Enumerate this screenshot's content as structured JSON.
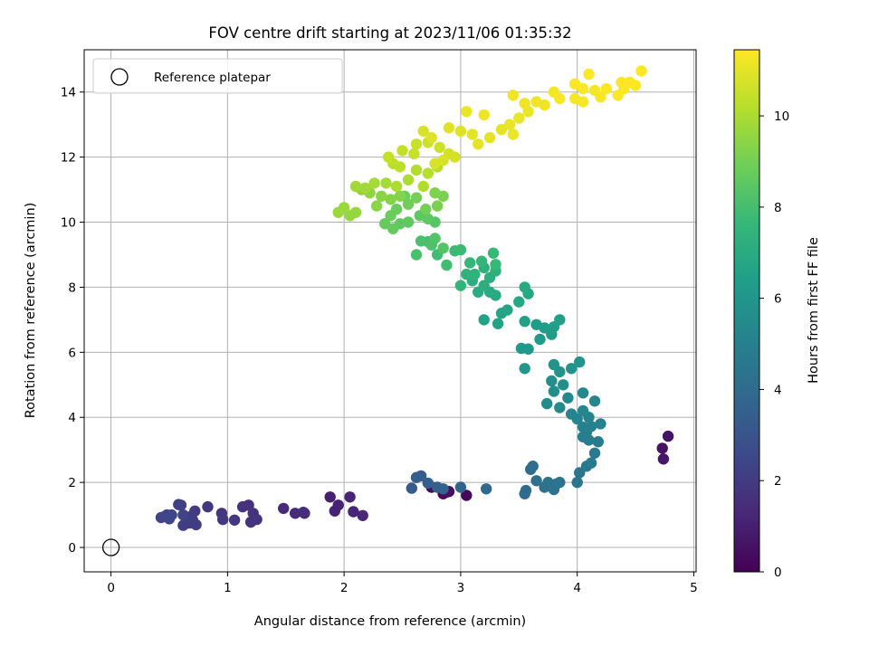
{
  "chart_data": {
    "type": "scatter",
    "title": "FOV centre drift starting at 2023/11/06 01:35:32",
    "xlabel": "Angular distance from reference (arcmin)",
    "ylabel": "Rotation from reference (arcmin)",
    "xlim": [
      -0.23,
      5.02
    ],
    "ylim": [
      -0.75,
      15.3
    ],
    "xticks": [
      0,
      1,
      2,
      3,
      4,
      5
    ],
    "yticks": [
      0,
      2,
      4,
      6,
      8,
      10,
      12,
      14
    ],
    "grid": true,
    "legend": {
      "placement": "upper-left",
      "entries": [
        "Reference platepar"
      ]
    },
    "colorbar": {
      "label": "Hours from first FF file",
      "range": [
        0,
        11.45
      ],
      "ticks": [
        0,
        2,
        4,
        6,
        8,
        10
      ],
      "colormap": "viridis"
    },
    "reference_point": {
      "x": 0,
      "y": 0,
      "label": "Reference platepar"
    },
    "series": [
      {
        "columns": [
          "x",
          "y",
          "hours"
        ],
        "points": [
          [
            2.88,
            1.7,
            0.2
          ],
          [
            3.05,
            1.6,
            0.3
          ],
          [
            2.75,
            1.85,
            0.4
          ],
          [
            2.85,
            1.65,
            0.4
          ],
          [
            2.9,
            1.72,
            0.5
          ],
          [
            4.78,
            3.42,
            0.6
          ],
          [
            4.73,
            3.05,
            0.6
          ],
          [
            4.74,
            2.72,
            0.7
          ],
          [
            1.88,
            1.55,
            1.0
          ],
          [
            1.92,
            1.12,
            1.1
          ],
          [
            1.95,
            1.3,
            1.1
          ],
          [
            2.05,
            1.55,
            1.2
          ],
          [
            2.08,
            1.1,
            1.2
          ],
          [
            2.16,
            0.98,
            1.3
          ],
          [
            1.48,
            1.2,
            1.4
          ],
          [
            1.58,
            1.05,
            1.4
          ],
          [
            1.66,
            1.05,
            1.5
          ],
          [
            1.65,
            1.08,
            1.5
          ],
          [
            1.13,
            1.25,
            1.6
          ],
          [
            1.18,
            1.3,
            1.6
          ],
          [
            1.22,
            1.05,
            1.7
          ],
          [
            1.2,
            0.78,
            1.7
          ],
          [
            1.25,
            0.86,
            1.7
          ],
          [
            1.06,
            0.84,
            1.8
          ],
          [
            0.95,
            1.05,
            1.8
          ],
          [
            0.96,
            0.86,
            1.9
          ],
          [
            0.83,
            1.25,
            1.9
          ],
          [
            0.72,
            1.12,
            2.0
          ],
          [
            0.7,
            0.85,
            2.0
          ],
          [
            0.67,
            0.75,
            2.0
          ],
          [
            0.62,
            0.68,
            2.1
          ],
          [
            0.73,
            0.7,
            2.1
          ],
          [
            0.68,
            0.95,
            2.1
          ],
          [
            0.6,
            1.3,
            2.2
          ],
          [
            0.58,
            1.32,
            2.2
          ],
          [
            0.62,
            1.0,
            2.3
          ],
          [
            0.48,
            1.0,
            2.3
          ],
          [
            0.46,
            0.95,
            2.4
          ],
          [
            0.43,
            0.92,
            2.4
          ],
          [
            0.5,
            0.88,
            2.5
          ],
          [
            0.52,
            1.0,
            2.5
          ],
          [
            2.58,
            1.82,
            3.3
          ],
          [
            2.62,
            2.15,
            3.4
          ],
          [
            2.66,
            2.2,
            3.4
          ],
          [
            2.72,
            1.98,
            3.5
          ],
          [
            2.8,
            1.85,
            3.5
          ],
          [
            2.85,
            1.8,
            3.6
          ],
          [
            3.0,
            1.85,
            3.7
          ],
          [
            3.22,
            1.8,
            3.8
          ],
          [
            3.55,
            1.65,
            3.9
          ],
          [
            3.56,
            1.75,
            4.0
          ],
          [
            3.6,
            2.4,
            4.0
          ],
          [
            3.62,
            2.5,
            4.1
          ],
          [
            3.65,
            2.05,
            4.2
          ],
          [
            3.72,
            1.85,
            4.2
          ],
          [
            3.75,
            2.0,
            4.3
          ],
          [
            3.8,
            1.78,
            4.3
          ],
          [
            3.85,
            2.0,
            4.4
          ],
          [
            3.82,
            1.95,
            4.4
          ],
          [
            4.0,
            2.0,
            4.5
          ],
          [
            4.02,
            2.3,
            4.5
          ],
          [
            4.08,
            2.5,
            4.6
          ],
          [
            4.12,
            2.6,
            4.7
          ],
          [
            4.15,
            2.9,
            4.7
          ],
          [
            4.18,
            3.25,
            4.8
          ],
          [
            4.1,
            3.3,
            4.8
          ],
          [
            4.05,
            3.4,
            4.9
          ],
          [
            4.08,
            3.55,
            4.9
          ],
          [
            4.05,
            3.7,
            5.0
          ],
          [
            4.12,
            3.72,
            5.0
          ],
          [
            4.2,
            3.8,
            5.1
          ],
          [
            4.1,
            4.0,
            5.1
          ],
          [
            4.0,
            3.95,
            5.2
          ],
          [
            3.95,
            4.1,
            5.2
          ],
          [
            4.05,
            4.2,
            5.3
          ],
          [
            4.15,
            4.5,
            5.3
          ],
          [
            4.05,
            4.75,
            5.4
          ],
          [
            3.92,
            4.6,
            5.4
          ],
          [
            3.85,
            4.3,
            5.5
          ],
          [
            3.74,
            4.42,
            5.6
          ],
          [
            3.8,
            4.8,
            5.6
          ],
          [
            3.88,
            5.0,
            5.7
          ],
          [
            3.78,
            5.12,
            5.7
          ],
          [
            3.85,
            5.4,
            5.8
          ],
          [
            3.95,
            5.5,
            5.8
          ],
          [
            4.02,
            5.7,
            5.9
          ],
          [
            3.8,
            5.62,
            5.9
          ],
          [
            3.55,
            5.5,
            6.0
          ],
          [
            3.52,
            6.12,
            6.1
          ],
          [
            3.58,
            6.1,
            6.1
          ],
          [
            3.68,
            6.4,
            6.2
          ],
          [
            3.78,
            6.55,
            6.2
          ],
          [
            3.72,
            6.75,
            6.3
          ],
          [
            3.65,
            6.85,
            6.3
          ],
          [
            3.8,
            6.78,
            6.4
          ],
          [
            3.85,
            7.0,
            6.4
          ],
          [
            3.55,
            6.95,
            6.5
          ],
          [
            3.32,
            6.88,
            6.6
          ],
          [
            3.2,
            7.0,
            6.6
          ],
          [
            3.35,
            7.2,
            6.7
          ],
          [
            3.4,
            7.3,
            6.7
          ],
          [
            3.5,
            7.55,
            6.8
          ],
          [
            3.58,
            7.8,
            6.8
          ],
          [
            3.55,
            8.0,
            6.9
          ],
          [
            3.3,
            7.75,
            6.9
          ],
          [
            3.25,
            7.85,
            7.0
          ],
          [
            3.15,
            7.85,
            7.0
          ],
          [
            3.1,
            8.2,
            7.1
          ],
          [
            3.2,
            8.05,
            7.2
          ],
          [
            3.25,
            8.3,
            7.2
          ],
          [
            3.3,
            8.5,
            7.3
          ],
          [
            3.2,
            8.6,
            7.3
          ],
          [
            3.12,
            8.4,
            7.4
          ],
          [
            3.05,
            8.4,
            7.4
          ],
          [
            3.0,
            8.05,
            7.5
          ],
          [
            3.08,
            8.75,
            7.6
          ],
          [
            3.18,
            8.8,
            7.6
          ],
          [
            3.28,
            9.05,
            7.7
          ],
          [
            3.3,
            8.7,
            7.7
          ],
          [
            3.0,
            9.15,
            7.8
          ],
          [
            2.95,
            9.12,
            7.8
          ],
          [
            2.88,
            8.68,
            7.9
          ],
          [
            2.8,
            9.0,
            7.9
          ],
          [
            2.72,
            9.4,
            8.0
          ],
          [
            2.66,
            9.42,
            8.1
          ],
          [
            2.62,
            9.0,
            8.1
          ],
          [
            2.75,
            9.3,
            8.2
          ],
          [
            2.85,
            9.2,
            8.3
          ],
          [
            2.78,
            9.5,
            8.3
          ],
          [
            2.78,
            10.0,
            8.4
          ],
          [
            2.72,
            10.1,
            8.5
          ],
          [
            2.65,
            10.2,
            8.5
          ],
          [
            2.55,
            10.0,
            8.6
          ],
          [
            2.48,
            9.95,
            8.6
          ],
          [
            2.42,
            9.8,
            8.7
          ],
          [
            2.35,
            9.95,
            8.7
          ],
          [
            2.4,
            10.2,
            8.8
          ],
          [
            2.45,
            10.4,
            8.8
          ],
          [
            2.55,
            10.55,
            8.9
          ],
          [
            2.52,
            10.8,
            8.9
          ],
          [
            2.62,
            10.75,
            9.0
          ],
          [
            2.7,
            10.4,
            9.0
          ],
          [
            2.8,
            10.5,
            9.1
          ],
          [
            2.85,
            10.8,
            9.1
          ],
          [
            2.78,
            10.9,
            9.2
          ],
          [
            2.48,
            10.8,
            9.3
          ],
          [
            2.4,
            10.7,
            9.3
          ],
          [
            2.32,
            10.8,
            9.4
          ],
          [
            2.28,
            10.5,
            9.4
          ],
          [
            2.22,
            10.9,
            9.5
          ],
          [
            2.15,
            11.0,
            9.5
          ],
          [
            2.1,
            10.3,
            9.6
          ],
          [
            2.05,
            10.2,
            9.6
          ],
          [
            2.0,
            10.45,
            9.7
          ],
          [
            1.95,
            10.3,
            9.7
          ],
          [
            2.1,
            11.1,
            9.8
          ],
          [
            2.18,
            11.05,
            9.8
          ],
          [
            2.26,
            11.2,
            9.9
          ],
          [
            2.36,
            11.2,
            9.9
          ],
          [
            2.45,
            11.1,
            10.0
          ],
          [
            2.55,
            11.3,
            10.0
          ],
          [
            2.68,
            11.1,
            10.1
          ],
          [
            2.62,
            11.6,
            10.1
          ],
          [
            2.72,
            11.5,
            10.2
          ],
          [
            2.8,
            11.7,
            10.2
          ],
          [
            2.48,
            11.7,
            10.3
          ],
          [
            2.42,
            11.8,
            10.3
          ],
          [
            2.38,
            12.0,
            10.4
          ],
          [
            2.5,
            12.2,
            10.4
          ],
          [
            2.6,
            12.1,
            10.5
          ],
          [
            2.62,
            12.4,
            10.5
          ],
          [
            2.72,
            12.45,
            10.6
          ],
          [
            2.82,
            12.3,
            10.6
          ],
          [
            2.9,
            12.1,
            10.7
          ],
          [
            2.95,
            12.0,
            10.7
          ],
          [
            2.85,
            11.9,
            10.8
          ],
          [
            2.78,
            11.8,
            10.8
          ],
          [
            2.68,
            12.8,
            10.8
          ],
          [
            2.75,
            12.6,
            10.9
          ],
          [
            2.9,
            12.9,
            10.9
          ],
          [
            3.0,
            12.8,
            10.9
          ],
          [
            3.1,
            12.7,
            11.0
          ],
          [
            3.15,
            12.4,
            11.0
          ],
          [
            3.25,
            12.6,
            11.0
          ],
          [
            3.35,
            12.85,
            11.0
          ],
          [
            3.45,
            12.7,
            11.1
          ],
          [
            3.42,
            13.0,
            11.1
          ],
          [
            3.5,
            13.2,
            11.1
          ],
          [
            3.58,
            13.4,
            11.1
          ],
          [
            3.05,
            13.4,
            11.1
          ],
          [
            3.2,
            13.3,
            11.2
          ],
          [
            3.45,
            13.9,
            11.2
          ],
          [
            3.55,
            13.65,
            11.2
          ],
          [
            3.65,
            13.7,
            11.2
          ],
          [
            3.72,
            13.6,
            11.2
          ],
          [
            3.85,
            13.8,
            11.3
          ],
          [
            3.8,
            14.0,
            11.3
          ],
          [
            3.98,
            13.8,
            11.3
          ],
          [
            4.05,
            13.7,
            11.3
          ],
          [
            4.15,
            14.05,
            11.3
          ],
          [
            4.2,
            13.85,
            11.3
          ],
          [
            4.05,
            14.1,
            11.4
          ],
          [
            3.98,
            14.25,
            11.4
          ],
          [
            4.1,
            14.55,
            11.4
          ],
          [
            4.25,
            14.1,
            11.4
          ],
          [
            4.35,
            13.9,
            11.4
          ],
          [
            4.4,
            14.1,
            11.4
          ],
          [
            4.45,
            14.3,
            11.45
          ],
          [
            4.55,
            14.65,
            11.45
          ],
          [
            4.5,
            14.2,
            11.45
          ],
          [
            4.38,
            14.3,
            11.45
          ]
        ]
      }
    ]
  }
}
